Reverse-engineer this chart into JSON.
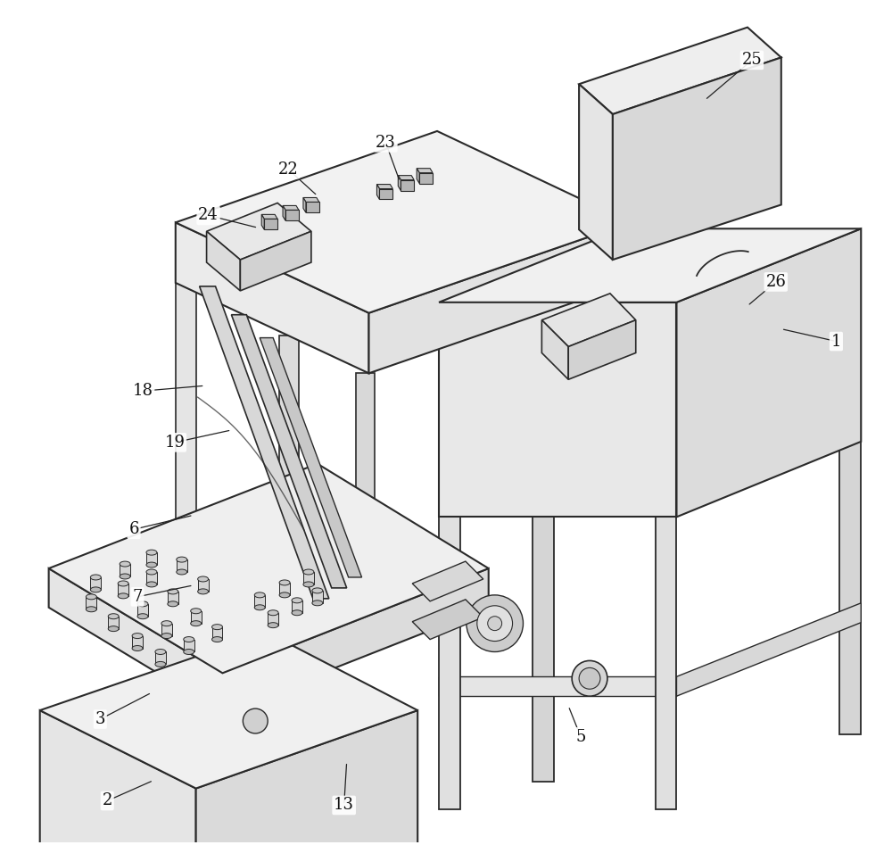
{
  "background_color": "#ffffff",
  "line_color": "#2a2a2a",
  "fig_width": 10.0,
  "fig_height": 9.47,
  "annotations": [
    [
      "1",
      940,
      382,
      878,
      368
    ],
    [
      "2",
      118,
      900,
      170,
      877
    ],
    [
      "3",
      110,
      808,
      168,
      778
    ],
    [
      "5",
      652,
      828,
      638,
      793
    ],
    [
      "6",
      148,
      594,
      215,
      578
    ],
    [
      "7",
      152,
      670,
      215,
      657
    ],
    [
      "13",
      385,
      905,
      388,
      856
    ],
    [
      "18",
      158,
      438,
      228,
      432
    ],
    [
      "19",
      194,
      496,
      258,
      482
    ],
    [
      "22",
      322,
      188,
      355,
      218
    ],
    [
      "23",
      432,
      158,
      448,
      202
    ],
    [
      "24",
      232,
      240,
      288,
      254
    ],
    [
      "25",
      845,
      65,
      792,
      110
    ],
    [
      "26",
      872,
      315,
      840,
      342
    ]
  ]
}
